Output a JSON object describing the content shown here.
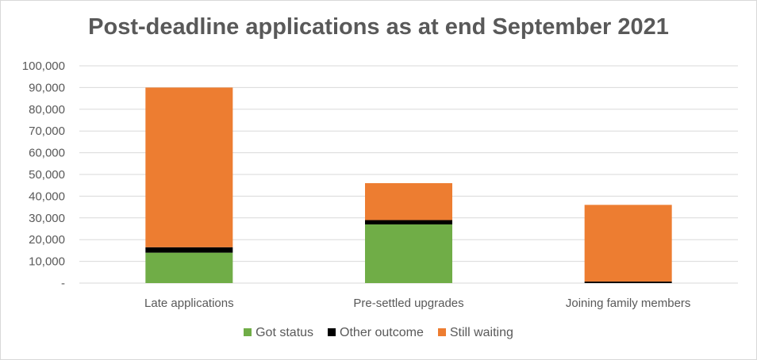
{
  "chart_data": {
    "type": "bar",
    "stacked": true,
    "title": "Post-deadline applications as at end September 2021",
    "categories": [
      "Late applications",
      "Pre-settled upgrades",
      "Joining family members"
    ],
    "series": [
      {
        "name": "Got status",
        "color": "#70ad47",
        "values": [
          14000,
          27000,
          0
        ]
      },
      {
        "name": "Other outcome",
        "color": "#000000",
        "values": [
          2500,
          2000,
          700
        ]
      },
      {
        "name": "Still waiting",
        "color": "#ed7d31",
        "values": [
          73500,
          17000,
          35300
        ]
      }
    ],
    "ylim": [
      0,
      100000
    ],
    "yticks": [
      0,
      10000,
      20000,
      30000,
      40000,
      50000,
      60000,
      70000,
      80000,
      90000,
      100000
    ],
    "ytick_labels": [
      "-",
      "10,000",
      "20,000",
      "30,000",
      "40,000",
      "50,000",
      "60,000",
      "70,000",
      "80,000",
      "90,000",
      "100,000"
    ],
    "grid": true,
    "legend": "bottom"
  }
}
